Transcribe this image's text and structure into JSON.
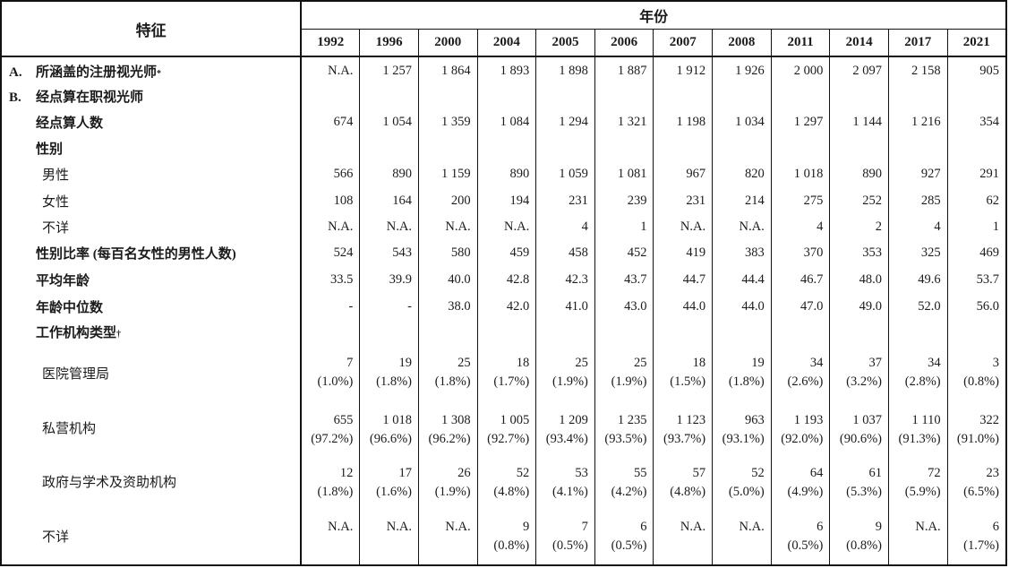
{
  "table": {
    "header": {
      "characteristic": "特征",
      "year_group": "年份"
    },
    "years": [
      "1992",
      "1996",
      "2000",
      "2004",
      "2005",
      "2006",
      "2007",
      "2008",
      "2011",
      "2014",
      "2017",
      "2021"
    ],
    "rows": [
      {
        "id": "covered-registered-optometrists",
        "prefix": "A.",
        "label": "所涵盖的注册视光师",
        "sup": "*",
        "bold": true,
        "indent": 1,
        "values": [
          "N.A.",
          "1 257",
          "1 864",
          "1 893",
          "1 898",
          "1 887",
          "1 912",
          "1 926",
          "2 000",
          "2 097",
          "2 158",
          "905"
        ]
      },
      {
        "id": "enumerated-working-optometrists-section",
        "prefix": "B.",
        "label": "经点算在职视光师",
        "sup": "",
        "bold": true,
        "indent": 1,
        "values": null
      },
      {
        "id": "enumerated-count",
        "prefix": "",
        "label": "经点算人数",
        "sup": "",
        "bold": true,
        "indent": 1,
        "values": [
          "674",
          "1 054",
          "1 359",
          "1 084",
          "1 294",
          "1 321",
          "1 198",
          "1 034",
          "1 297",
          "1 144",
          "1 216",
          "354"
        ]
      },
      {
        "id": "sex-section",
        "prefix": "",
        "label": "性别",
        "sup": "",
        "bold": true,
        "indent": 1,
        "values": null
      },
      {
        "id": "male",
        "prefix": "",
        "label": "男性",
        "sup": "",
        "bold": false,
        "indent": 2,
        "values": [
          "566",
          "890",
          "1 159",
          "890",
          "1 059",
          "1 081",
          "967",
          "820",
          "1 018",
          "890",
          "927",
          "291"
        ]
      },
      {
        "id": "female",
        "prefix": "",
        "label": "女性",
        "sup": "",
        "bold": false,
        "indent": 2,
        "values": [
          "108",
          "164",
          "200",
          "194",
          "231",
          "239",
          "231",
          "214",
          "275",
          "252",
          "285",
          "62"
        ]
      },
      {
        "id": "sex-unknown",
        "prefix": "",
        "label": "不详",
        "sup": "",
        "bold": false,
        "indent": 2,
        "values": [
          "N.A.",
          "N.A.",
          "N.A.",
          "N.A.",
          "4",
          "1",
          "N.A.",
          "N.A.",
          "4",
          "2",
          "4",
          "1"
        ]
      },
      {
        "id": "sex-ratio",
        "prefix": "",
        "label": "性别比率 (每百名女性的男性人数)",
        "sup": "",
        "bold": true,
        "indent": 1,
        "values": [
          "524",
          "543",
          "580",
          "459",
          "458",
          "452",
          "419",
          "383",
          "370",
          "353",
          "325",
          "469"
        ]
      },
      {
        "id": "mean-age",
        "prefix": "",
        "label": "平均年龄",
        "sup": "",
        "bold": true,
        "indent": 1,
        "values": [
          "33.5",
          "39.9",
          "40.0",
          "42.8",
          "42.3",
          "43.7",
          "44.7",
          "44.4",
          "46.7",
          "48.0",
          "49.6",
          "53.7"
        ]
      },
      {
        "id": "median-age",
        "prefix": "",
        "label": "年龄中位数",
        "sup": "",
        "bold": true,
        "indent": 1,
        "values": [
          "-",
          "-",
          "38.0",
          "42.0",
          "41.0",
          "43.0",
          "44.0",
          "44.0",
          "47.0",
          "49.0",
          "52.0",
          "56.0"
        ]
      },
      {
        "id": "work-sector-section",
        "prefix": "",
        "label": "工作机构类型",
        "sup": "†",
        "bold": true,
        "indent": 1,
        "values": null
      },
      {
        "id": "hospital-authority",
        "prefix": "",
        "label": "医院管理局",
        "sup": "",
        "bold": false,
        "indent": 2,
        "two_line": true,
        "values": [
          [
            "7",
            "(1.0%)"
          ],
          [
            "19",
            "(1.8%)"
          ],
          [
            "25",
            "(1.8%)"
          ],
          [
            "18",
            "(1.7%)"
          ],
          [
            "25",
            "(1.9%)"
          ],
          [
            "25",
            "(1.9%)"
          ],
          [
            "18",
            "(1.5%)"
          ],
          [
            "19",
            "(1.8%)"
          ],
          [
            "34",
            "(2.6%)"
          ],
          [
            "37",
            "(3.2%)"
          ],
          [
            "34",
            "(2.8%)"
          ],
          [
            "3",
            "(0.8%)"
          ]
        ]
      },
      {
        "id": "private-sector",
        "prefix": "",
        "label": "私营机构",
        "sup": "",
        "bold": false,
        "indent": 2,
        "two_line": true,
        "values": [
          [
            "655",
            "(97.2%)"
          ],
          [
            "1 018",
            "(96.6%)"
          ],
          [
            "1 308",
            "(96.2%)"
          ],
          [
            "1 005",
            "(92.7%)"
          ],
          [
            "1 209",
            "(93.4%)"
          ],
          [
            "1 235",
            "(93.5%)"
          ],
          [
            "1 123",
            "(93.7%)"
          ],
          [
            "963",
            "(93.1%)"
          ],
          [
            "1 193",
            "(92.0%)"
          ],
          [
            "1 037",
            "(90.6%)"
          ],
          [
            "1 110",
            "(91.3%)"
          ],
          [
            "322",
            "(91.0%)"
          ]
        ]
      },
      {
        "id": "government-academic-subvented",
        "prefix": "",
        "label": "政府与学术及资助机构",
        "sup": "",
        "bold": false,
        "indent": 2,
        "two_line": true,
        "values": [
          [
            "12",
            "(1.8%)"
          ],
          [
            "17",
            "(1.6%)"
          ],
          [
            "26",
            "(1.9%)"
          ],
          [
            "52",
            "(4.8%)"
          ],
          [
            "53",
            "(4.1%)"
          ],
          [
            "55",
            "(4.2%)"
          ],
          [
            "57",
            "(4.8%)"
          ],
          [
            "52",
            "(5.0%)"
          ],
          [
            "64",
            "(4.9%)"
          ],
          [
            "61",
            "(5.3%)"
          ],
          [
            "72",
            "(5.9%)"
          ],
          [
            "23",
            "(6.5%)"
          ]
        ]
      },
      {
        "id": "sector-unknown",
        "prefix": "",
        "label": "不详",
        "sup": "",
        "bold": false,
        "indent": 2,
        "two_line": true,
        "values": [
          [
            "N.A."
          ],
          [
            "N.A."
          ],
          [
            "N.A."
          ],
          [
            "9",
            "(0.8%)"
          ],
          [
            "7",
            "(0.5%)"
          ],
          [
            "6",
            "(0.5%)"
          ],
          [
            "N.A."
          ],
          [
            "N.A."
          ],
          [
            "6",
            "(0.5%)"
          ],
          [
            "9",
            "(0.8%)"
          ],
          [
            "N.A."
          ],
          [
            "6",
            "(1.7%)"
          ]
        ]
      }
    ]
  }
}
